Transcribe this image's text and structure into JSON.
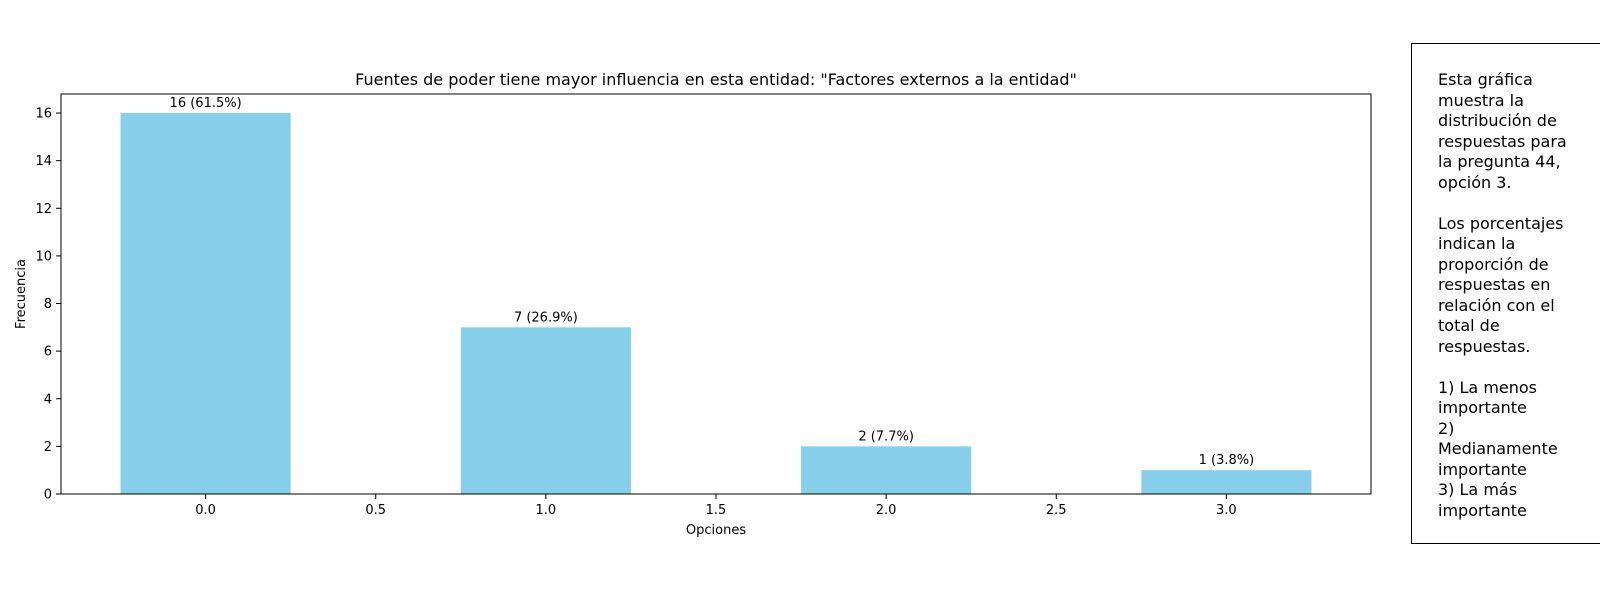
{
  "chart_data": {
    "type": "bar",
    "title": "Fuentes de poder tiene mayor influencia en esta entidad: \"Factores externos a la entidad\"",
    "xlabel": "Opciones",
    "ylabel": "Frecuencia",
    "x": [
      0,
      1,
      2,
      3
    ],
    "values": [
      16,
      7,
      2,
      1
    ],
    "labels": [
      "16 (61.5%)",
      "7 (26.9%)",
      "2 (7.7%)",
      "1 (3.8%)"
    ],
    "bar_width": 0.5,
    "xlim": [
      -0.425,
      3.425
    ],
    "ylim": [
      0,
      16.8
    ],
    "xticks": [
      "0.0",
      "0.5",
      "1.0",
      "1.5",
      "2.0",
      "2.5",
      "3.0"
    ],
    "yticks": [
      "0",
      "2",
      "4",
      "6",
      "8",
      "10",
      "12",
      "14",
      "16"
    ],
    "bar_color": "#87ceeb",
    "grid": false
  },
  "note": {
    "text": "Esta gráfica\nmuestra la\ndistribución de\nrespuestas para\nla pregunta 44,\nopción 3.\n\nLos porcentajes\nindican la\nproporción de\nrespuestas en\nrelación con el\ntotal de\nrespuestas.\n\n1) La menos\nimportante\n2)\nMedianamente\nimportante\n3) La más\nimportante"
  }
}
